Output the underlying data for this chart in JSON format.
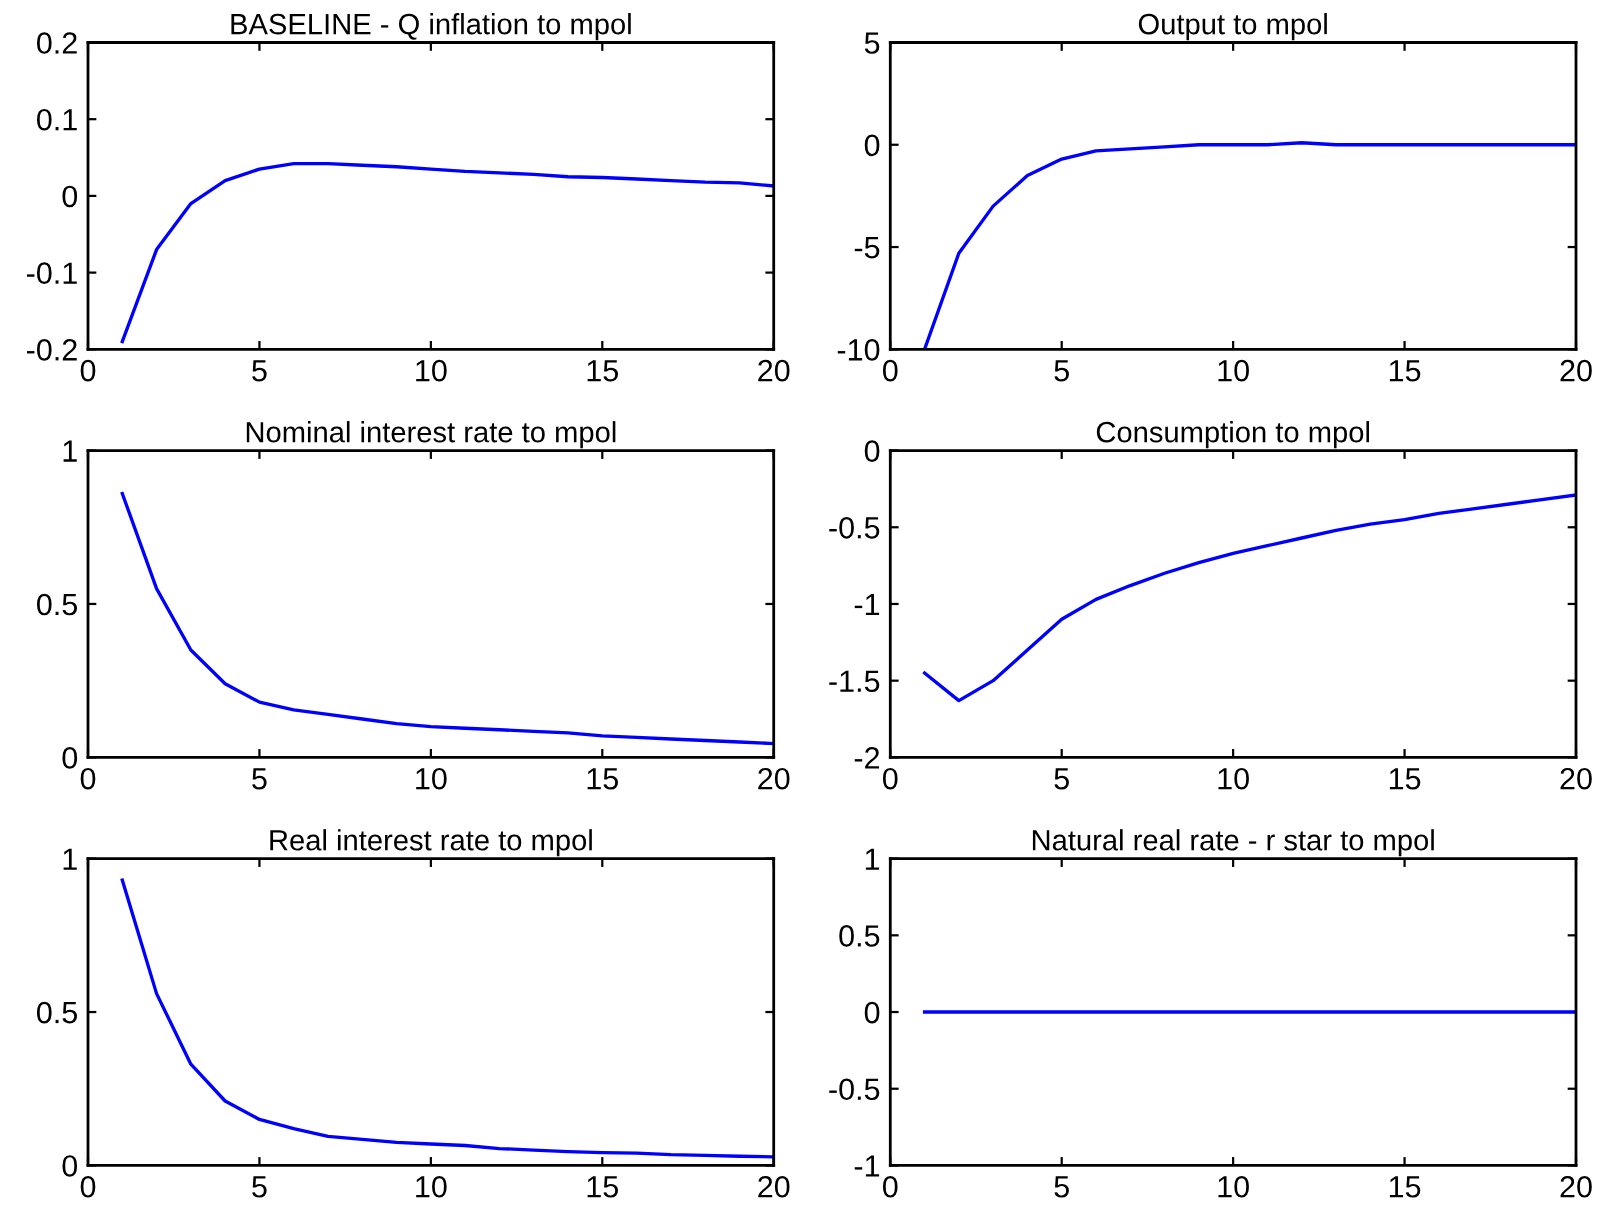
{
  "chart_data": [
    {
      "type": "line",
      "title": "BASELINE - Q inflation to mpol",
      "x": [
        1,
        2,
        3,
        4,
        5,
        6,
        7,
        8,
        9,
        10,
        11,
        12,
        13,
        14,
        15,
        16,
        17,
        18,
        19,
        20
      ],
      "xlim": [
        0,
        20
      ],
      "xticks": [
        0,
        5,
        10,
        15,
        20
      ],
      "ylim": [
        -0.2,
        0.2
      ],
      "yticks": [
        -0.2,
        -0.1,
        0,
        0.1,
        0.2
      ],
      "grid": false,
      "legend": false,
      "series": [
        {
          "color": "#0000ff",
          "values": [
            -0.19,
            -0.07,
            -0.01,
            0.02,
            0.035,
            0.042,
            0.042,
            0.04,
            0.038,
            0.035,
            0.032,
            0.03,
            0.028,
            0.025,
            0.024,
            0.022,
            0.02,
            0.018,
            0.017,
            0.013
          ]
        }
      ]
    },
    {
      "type": "line",
      "title": "Output to mpol",
      "x": [
        1,
        2,
        3,
        4,
        5,
        6,
        7,
        8,
        9,
        10,
        11,
        12,
        13,
        14,
        15,
        16,
        17,
        18,
        19,
        20
      ],
      "xlim": [
        0,
        20
      ],
      "xticks": [
        0,
        5,
        10,
        15,
        20
      ],
      "ylim": [
        -10,
        5
      ],
      "yticks": [
        -10,
        -5,
        0,
        5
      ],
      "grid": false,
      "legend": false,
      "series": [
        {
          "color": "#0000ff",
          "values": [
            -10,
            -5.3,
            -3,
            -1.5,
            -0.7,
            -0.3,
            -0.2,
            -0.1,
            0,
            0,
            0,
            0.1,
            0,
            0,
            0,
            0,
            0,
            0,
            0,
            0
          ]
        }
      ]
    },
    {
      "type": "line",
      "title": "Nominal interest rate to mpol",
      "x": [
        1,
        2,
        3,
        4,
        5,
        6,
        7,
        8,
        9,
        10,
        11,
        12,
        13,
        14,
        15,
        16,
        17,
        18,
        19,
        20
      ],
      "xlim": [
        0,
        20
      ],
      "xticks": [
        0,
        5,
        10,
        15,
        20
      ],
      "ylim": [
        0,
        1
      ],
      "yticks": [
        0,
        0.5,
        1
      ],
      "grid": false,
      "legend": false,
      "series": [
        {
          "color": "#0000ff",
          "values": [
            0.86,
            0.55,
            0.35,
            0.24,
            0.18,
            0.155,
            0.14,
            0.125,
            0.11,
            0.1,
            0.095,
            0.09,
            0.085,
            0.08,
            0.07,
            0.065,
            0.06,
            0.055,
            0.05,
            0.045
          ]
        }
      ]
    },
    {
      "type": "line",
      "title": "Consumption to mpol",
      "x": [
        1,
        2,
        3,
        4,
        5,
        6,
        7,
        8,
        9,
        10,
        11,
        12,
        13,
        14,
        15,
        16,
        17,
        18,
        19,
        20
      ],
      "xlim": [
        0,
        20
      ],
      "xticks": [
        0,
        5,
        10,
        15,
        20
      ],
      "ylim": [
        -2,
        0
      ],
      "yticks": [
        -2,
        -1.5,
        -1,
        -0.5,
        0
      ],
      "grid": false,
      "legend": false,
      "series": [
        {
          "color": "#0000ff",
          "values": [
            -1.45,
            -1.63,
            -1.5,
            -1.3,
            -1.1,
            -0.97,
            -0.88,
            -0.8,
            -0.73,
            -0.67,
            -0.62,
            -0.57,
            -0.52,
            -0.48,
            -0.45,
            -0.41,
            -0.38,
            -0.35,
            -0.32,
            -0.29
          ]
        }
      ]
    },
    {
      "type": "line",
      "title": "Real interest rate to mpol",
      "x": [
        1,
        2,
        3,
        4,
        5,
        6,
        7,
        8,
        9,
        10,
        11,
        12,
        13,
        14,
        15,
        16,
        17,
        18,
        19,
        20
      ],
      "xlim": [
        0,
        20
      ],
      "xticks": [
        0,
        5,
        10,
        15,
        20
      ],
      "ylim": [
        0,
        1
      ],
      "yticks": [
        0,
        0.5,
        1
      ],
      "grid": false,
      "legend": false,
      "series": [
        {
          "color": "#0000ff",
          "values": [
            0.93,
            0.56,
            0.33,
            0.21,
            0.15,
            0.12,
            0.095,
            0.085,
            0.075,
            0.07,
            0.065,
            0.055,
            0.05,
            0.045,
            0.042,
            0.04,
            0.035,
            0.033,
            0.03,
            0.028
          ]
        }
      ]
    },
    {
      "type": "line",
      "title": "Natural real rate - r star to mpol",
      "x": [
        1,
        2,
        3,
        4,
        5,
        6,
        7,
        8,
        9,
        10,
        11,
        12,
        13,
        14,
        15,
        16,
        17,
        18,
        19,
        20
      ],
      "xlim": [
        0,
        20
      ],
      "xticks": [
        0,
        5,
        10,
        15,
        20
      ],
      "ylim": [
        -1,
        1
      ],
      "yticks": [
        -1,
        -0.5,
        0,
        0.5,
        1
      ],
      "grid": false,
      "legend": false,
      "series": [
        {
          "color": "#0000ff",
          "values": [
            0,
            0,
            0,
            0,
            0,
            0,
            0,
            0,
            0,
            0,
            0,
            0,
            0,
            0,
            0,
            0,
            0,
            0,
            0,
            0
          ]
        }
      ]
    }
  ]
}
